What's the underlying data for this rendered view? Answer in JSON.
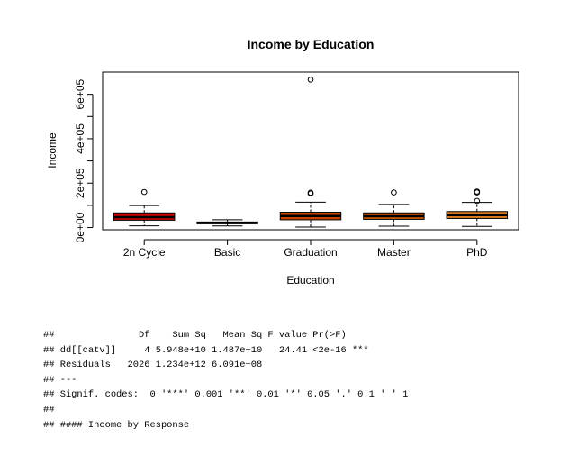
{
  "chart_data": {
    "type": "boxplot",
    "title": "Income by Education",
    "xlabel": "Education",
    "ylabel": "Income",
    "ylim": [
      -10000,
      700000
    ],
    "yticks": [
      0,
      100000,
      200000,
      300000,
      400000,
      500000,
      600000
    ],
    "ytick_labels": [
      "0e+00",
      "",
      "2e+05",
      "",
      "4e+05",
      "",
      "6e+05"
    ],
    "categories": [
      "2n Cycle",
      "Basic",
      "Graduation",
      "Master",
      "PhD"
    ],
    "boxes": [
      {
        "category": "2n Cycle",
        "color": "#cc0000",
        "whisker_low": 8000,
        "q1": 33000,
        "median": 47000,
        "q3": 66000,
        "whisker_high": 99000,
        "outliers": [
          160000
        ]
      },
      {
        "category": "Basic",
        "color": "#b32100",
        "whisker_low": 7000,
        "q1": 17000,
        "median": 21000,
        "q3": 25000,
        "whisker_high": 35000,
        "outliers": []
      },
      {
        "category": "Graduation",
        "color": "#c84400",
        "whisker_low": 2000,
        "q1": 35000,
        "median": 52000,
        "q3": 69000,
        "whisker_high": 114000,
        "outliers": [
          153000,
          157000,
          666000
        ]
      },
      {
        "category": "Master",
        "color": "#d65c00",
        "whisker_low": 6000,
        "q1": 37000,
        "median": 51000,
        "q3": 66000,
        "whisker_high": 104000,
        "outliers": [
          158000
        ]
      },
      {
        "category": "PhD",
        "color": "#e07a1e",
        "whisker_low": 5000,
        "q1": 41000,
        "median": 56000,
        "q3": 72000,
        "whisker_high": 113000,
        "outliers": [
          120000,
          158000,
          162000
        ]
      }
    ]
  },
  "console": {
    "lines": [
      "##               Df    Sum Sq   Mean Sq F value Pr(>F)    ",
      "## dd[[catv]]     4 5.948e+10 1.487e+10   24.41 <2e-16 ***",
      "## Residuals   2026 1.234e+12 6.091e+08                   ",
      "## ---",
      "## Signif. codes:  0 '***' 0.001 '**' 0.01 '*' 0.05 '.' 0.1 ' ' 1",
      "##",
      "## #### Income by Response"
    ]
  }
}
